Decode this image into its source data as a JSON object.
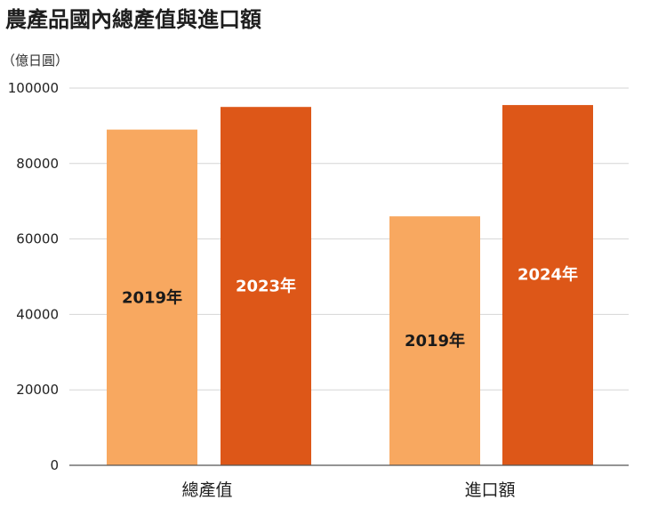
{
  "chart_data": {
    "type": "bar",
    "title": "農產品國內總產值與進口額",
    "unit_label": "（億日圓）",
    "ylim": [
      0,
      100000
    ],
    "yticks": [
      "0",
      "20000",
      "40000",
      "60000",
      "80000",
      "100000"
    ],
    "grid": true,
    "categories": [
      "總產值",
      "進口額"
    ],
    "bars": [
      {
        "category": "總產值",
        "label": "2019年",
        "value": 89000,
        "color": "#f8a860",
        "label_color": "#1a1a1a"
      },
      {
        "category": "總產值",
        "label": "2023年",
        "value": 95000,
        "color": "#dd5718",
        "label_color": "#ffffff"
      },
      {
        "category": "進口額",
        "label": "2019年",
        "value": 66000,
        "color": "#f8a860",
        "label_color": "#1a1a1a"
      },
      {
        "category": "進口額",
        "label": "2024年",
        "value": 95500,
        "color": "#dd5718",
        "label_color": "#ffffff"
      }
    ]
  }
}
